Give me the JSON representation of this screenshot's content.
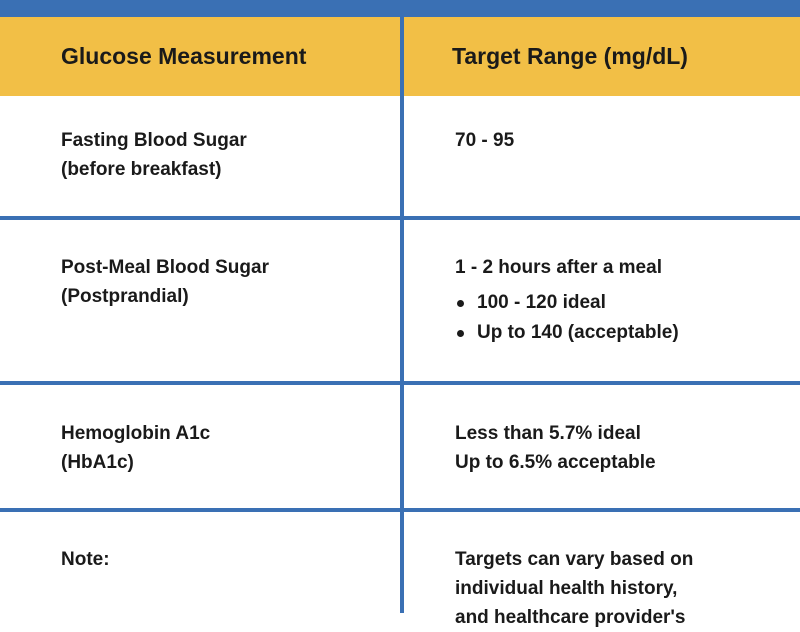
{
  "header": {
    "col1": "Glucose Measurement",
    "col2": "Target Range (mg/dL)"
  },
  "rows": [
    {
      "measurement": [
        "Fasting Blood Sugar",
        "(before breakfast)"
      ],
      "target": [
        "70 - 95"
      ]
    },
    {
      "measurement": [
        "Post-Meal Blood Sugar",
        "(Postprandial)"
      ],
      "target": [
        "1 - 2 hours after a meal"
      ],
      "bullets": [
        "100 - 120 ideal",
        "Up to 140 (acceptable)"
      ]
    },
    {
      "measurement": [
        "Hemoglobin A1c",
        "(HbA1c)"
      ],
      "target": [
        "Less than 5.7% ideal",
        "Up to 6.5% acceptable"
      ]
    },
    {
      "measurement": [
        "Note:"
      ],
      "target": [
        "Targets can vary based on",
        "individual health history,",
        "and healthcare provider's"
      ]
    }
  ],
  "colors": {
    "border": "#3a70b4",
    "header_bg": "#f2bf46",
    "text": "#1a1a1a"
  }
}
